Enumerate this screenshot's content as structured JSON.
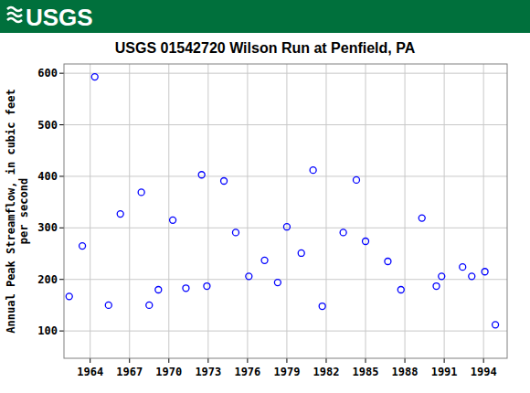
{
  "header": {
    "logo": "USGS"
  },
  "chart_data": {
    "type": "scatter",
    "title": "USGS 01542720 Wilson Run at Penfield, PA",
    "ylabel": [
      "Annual Peak Streamflow, in cubic feet",
      "per second"
    ],
    "x": [
      1962.4,
      1963.4,
      1964.35,
      1965.4,
      1966.3,
      1967.9,
      1968.5,
      1969.2,
      1970.3,
      1971.3,
      1972.5,
      1972.9,
      1974.2,
      1975.1,
      1976.1,
      1977.3,
      1978.3,
      1979.0,
      1980.1,
      1981.0,
      1981.7,
      1983.3,
      1984.3,
      1985.0,
      1986.7,
      1987.7,
      1989.3,
      1990.4,
      1990.8,
      1992.4,
      1993.1,
      1994.1,
      1994.9
    ],
    "values": [
      167,
      265,
      593,
      150,
      327,
      369,
      150,
      180,
      315,
      183,
      403,
      187,
      391,
      291,
      206,
      237,
      194,
      302,
      251,
      412,
      148,
      291,
      393,
      274,
      235,
      180,
      319,
      187,
      206,
      224,
      206,
      215,
      112
    ],
    "color": "#0000ff",
    "marker": "open-circle",
    "xlim": [
      1962.0,
      1995.8
    ],
    "xticks": [
      1964,
      1967,
      1970,
      1973,
      1976,
      1979,
      1982,
      1985,
      1988,
      1991,
      1994
    ],
    "ylim": [
      47,
      618
    ],
    "yticks": [
      100,
      200,
      300,
      400,
      500,
      600
    ],
    "grid": true
  }
}
